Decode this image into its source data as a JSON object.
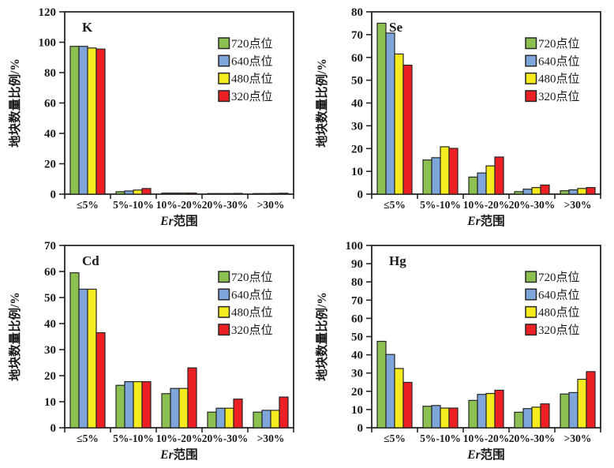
{
  "figure": {
    "background": "#ffffff",
    "axis_color": "#262626",
    "bar_border_color": "#262626",
    "ylabel": "地块数量比例/%",
    "xlabel_italic": "Er",
    "xlabel_text": "范围"
  },
  "legend": {
    "items": [
      {
        "label": "720点位",
        "color": "#8CC152"
      },
      {
        "label": "640点位",
        "color": "#7EA6DB"
      },
      {
        "label": "480点位",
        "color": "#F5EB1E"
      },
      {
        "label": "320点位",
        "color": "#EC2024"
      }
    ]
  },
  "chart_data": [
    {
      "type": "bar",
      "title": "K",
      "xlabel": "Er范围",
      "ylabel": "地块数量比例/%",
      "ylim": [
        0,
        120
      ],
      "ystep": 20,
      "legend_position": "upper-right-inside",
      "grid": false,
      "categories": [
        "≤5%",
        "5%-10%",
        "10%-20%",
        "20%-30%",
        ">30%"
      ],
      "series": [
        {
          "name": "720点位",
          "color": "#8CC152",
          "values": [
            97.3,
            1.6,
            0.7,
            0.3,
            0.4
          ]
        },
        {
          "name": "640点位",
          "color": "#7EA6DB",
          "values": [
            97.3,
            2.1,
            0.7,
            0.3,
            0.4
          ]
        },
        {
          "name": "480点位",
          "color": "#F5EB1E",
          "values": [
            96.2,
            2.7,
            0.7,
            0.4,
            0.5
          ]
        },
        {
          "name": "320点位",
          "color": "#EC2024",
          "values": [
            95.5,
            3.7,
            0.7,
            0.5,
            0.6
          ]
        }
      ]
    },
    {
      "type": "bar",
      "title": "Se",
      "xlabel": "Er范围",
      "ylabel": "地块数量比例/%",
      "ylim": [
        0,
        80
      ],
      "ystep": 10,
      "legend_position": "upper-right-inside",
      "grid": false,
      "categories": [
        "≤5%",
        "5%-10%",
        "10%-20%",
        "20%-30%",
        ">30%"
      ],
      "series": [
        {
          "name": "720点位",
          "color": "#8CC152",
          "values": [
            75.0,
            15.0,
            7.5,
            1.1,
            1.5
          ]
        },
        {
          "name": "640点位",
          "color": "#7EA6DB",
          "values": [
            70.7,
            16.0,
            9.3,
            2.2,
            1.9
          ]
        },
        {
          "name": "480点位",
          "color": "#F5EB1E",
          "values": [
            61.5,
            20.8,
            12.4,
            2.9,
            2.5
          ]
        },
        {
          "name": "320点位",
          "color": "#EC2024",
          "values": [
            56.6,
            20.1,
            16.3,
            4.0,
            2.9
          ]
        }
      ]
    },
    {
      "type": "bar",
      "title": "Cd",
      "xlabel": "Er范围",
      "ylabel": "地块数量比例/%",
      "ylim": [
        0,
        70
      ],
      "ystep": 10,
      "legend_position": "upper-right-inside",
      "grid": false,
      "categories": [
        "≤5%",
        "5%-10%",
        "10%-20%",
        "20%-30%",
        ">30%"
      ],
      "series": [
        {
          "name": "720点位",
          "color": "#8CC152",
          "values": [
            59.5,
            16.3,
            13.1,
            6.0,
            6.0
          ]
        },
        {
          "name": "640点位",
          "color": "#7EA6DB",
          "values": [
            53.2,
            17.7,
            15.1,
            7.5,
            6.7
          ]
        },
        {
          "name": "480点位",
          "color": "#F5EB1E",
          "values": [
            53.2,
            17.7,
            15.1,
            7.5,
            6.7
          ]
        },
        {
          "name": "320点位",
          "color": "#EC2024",
          "values": [
            36.5,
            17.7,
            23.0,
            11.0,
            11.8
          ]
        }
      ]
    },
    {
      "type": "bar",
      "title": "Hg",
      "xlabel": "Er范围",
      "ylabel": "地块数量比例/%",
      "ylim": [
        0,
        100
      ],
      "ystep": 10,
      "legend_position": "upper-right-inside",
      "grid": false,
      "categories": [
        "≤5%",
        "5%-10%",
        "10%-20%",
        "20%-30%",
        ">30%"
      ],
      "series": [
        {
          "name": "720点位",
          "color": "#8CC152",
          "values": [
            47.4,
            11.8,
            15.0,
            8.5,
            18.5
          ]
        },
        {
          "name": "640点位",
          "color": "#7EA6DB",
          "values": [
            40.2,
            12.2,
            18.3,
            10.5,
            19.3
          ]
        },
        {
          "name": "480点位",
          "color": "#F5EB1E",
          "values": [
            32.5,
            10.8,
            18.8,
            11.3,
            26.6
          ]
        },
        {
          "name": "320点位",
          "color": "#EC2024",
          "values": [
            24.9,
            10.8,
            20.6,
            13.1,
            30.8
          ]
        }
      ]
    }
  ]
}
